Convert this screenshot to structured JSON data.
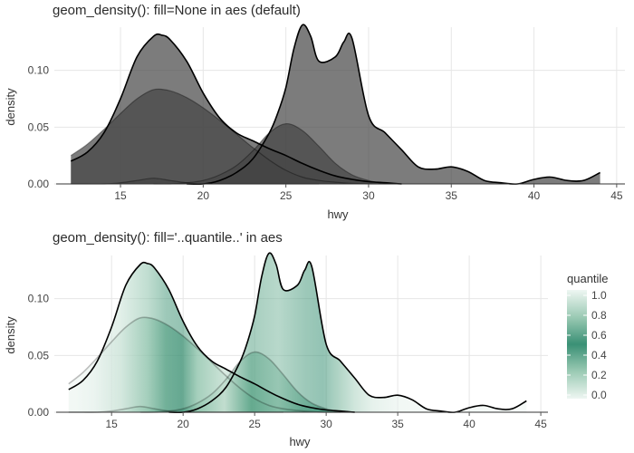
{
  "chart_data": [
    {
      "type": "area",
      "subtype": "density",
      "title": "geom_density(): fill=None in aes (default)",
      "xlabel": "hwy",
      "ylabel": "density",
      "xlim": [
        11,
        45.5
      ],
      "ylim": [
        0,
        0.138
      ],
      "xticks": [
        15,
        20,
        25,
        30,
        35,
        40,
        45
      ],
      "yticks": [
        0.0,
        0.05,
        0.1
      ],
      "ytick_labels": [
        "0.00",
        "0.05",
        "0.10"
      ],
      "grid": true,
      "fill_color": "#454545",
      "line_color": "#000000",
      "series": [
        {
          "x": [
            12,
            13,
            14,
            15,
            16,
            17,
            17.5,
            18,
            19,
            20,
            21,
            22,
            23,
            24,
            25,
            26,
            27,
            28,
            29,
            30,
            31,
            32
          ],
          "y": [
            0.02,
            0.028,
            0.045,
            0.075,
            0.112,
            0.13,
            0.131,
            0.127,
            0.108,
            0.08,
            0.058,
            0.045,
            0.038,
            0.031,
            0.025,
            0.018,
            0.012,
            0.007,
            0.004,
            0.002,
            0.001,
            0.0
          ]
        },
        {
          "x": [
            12,
            13,
            14,
            15,
            16,
            17,
            18,
            19,
            20,
            21,
            22,
            23,
            24,
            25,
            26,
            27
          ],
          "y": [
            0.0,
            0.0,
            0.0,
            0.001,
            0.003,
            0.005,
            0.003,
            0.001,
            0.0,
            0.0,
            0.0,
            0.0,
            0.0,
            0.0,
            0.0,
            0.0
          ]
        },
        {
          "x": [
            12,
            13,
            14,
            15,
            16,
            17,
            18,
            19,
            20,
            21,
            22,
            23,
            24,
            25,
            26,
            27,
            28,
            29,
            30,
            31,
            32
          ],
          "y": [
            0.025,
            0.035,
            0.048,
            0.062,
            0.075,
            0.083,
            0.082,
            0.076,
            0.067,
            0.056,
            0.044,
            0.032,
            0.021,
            0.012,
            0.006,
            0.003,
            0.0015,
            0.0005,
            0.0,
            0.0,
            0.0
          ]
        },
        {
          "x": [
            17,
            18,
            19,
            20,
            21,
            22,
            23,
            24,
            25,
            26,
            27,
            28,
            29,
            30,
            31
          ],
          "y": [
            0.0,
            0.0,
            0.001,
            0.003,
            0.008,
            0.016,
            0.029,
            0.045,
            0.053,
            0.047,
            0.033,
            0.018,
            0.008,
            0.003,
            0.0
          ]
        },
        {
          "x": [
            19,
            20,
            21,
            22,
            23,
            24,
            24.5,
            25,
            25.5,
            26,
            26.5,
            27,
            28,
            28.5,
            29,
            30,
            31,
            32,
            33,
            34,
            35,
            36,
            37,
            38,
            39,
            40,
            41,
            42,
            43,
            44
          ],
          "y": [
            0.0,
            0.0,
            0.003,
            0.01,
            0.022,
            0.045,
            0.062,
            0.085,
            0.12,
            0.14,
            0.13,
            0.108,
            0.112,
            0.125,
            0.128,
            0.06,
            0.045,
            0.03,
            0.015,
            0.013,
            0.015,
            0.011,
            0.003,
            0.001,
            0.0,
            0.004,
            0.006,
            0.003,
            0.003,
            0.01
          ]
        }
      ]
    },
    {
      "type": "area",
      "subtype": "density",
      "title": "geom_density(): fill='..quantile..' in aes",
      "xlabel": "hwy",
      "ylabel": "density",
      "xlim": [
        11,
        45.5
      ],
      "ylim": [
        0,
        0.138
      ],
      "xticks": [
        15,
        20,
        25,
        30,
        35,
        40,
        45
      ],
      "yticks": [
        0.0,
        0.05,
        0.1
      ],
      "ytick_labels": [
        "0.00",
        "0.05",
        "0.10"
      ],
      "grid": true,
      "legend": {
        "title": "quantile",
        "placement": "right",
        "ticks": [
          "1.0",
          "0.8",
          "0.6",
          "0.4",
          "0.2",
          "0.0"
        ],
        "colors": [
          "#ebf4f0",
          "#3a9075",
          "#ebf4f0"
        ]
      },
      "line_color": "#000000",
      "series": [
        {
          "x": [
            12,
            13,
            14,
            15,
            16,
            17,
            17.5,
            18,
            19,
            20,
            21,
            22,
            23,
            24,
            25,
            26,
            27,
            28,
            29,
            30,
            31,
            32
          ],
          "y": [
            0.02,
            0.028,
            0.045,
            0.075,
            0.112,
            0.13,
            0.131,
            0.127,
            0.108,
            0.08,
            0.058,
            0.045,
            0.038,
            0.031,
            0.025,
            0.018,
            0.012,
            0.007,
            0.004,
            0.002,
            0.001,
            0.0
          ]
        },
        {
          "x": [
            12,
            13,
            14,
            15,
            16,
            17,
            18,
            19,
            20,
            21,
            22,
            23,
            24,
            25,
            26,
            27
          ],
          "y": [
            0.0,
            0.0,
            0.0,
            0.001,
            0.003,
            0.005,
            0.003,
            0.001,
            0.0,
            0.0,
            0.0,
            0.0,
            0.0,
            0.0,
            0.0,
            0.0
          ]
        },
        {
          "x": [
            12,
            13,
            14,
            15,
            16,
            17,
            18,
            19,
            20,
            21,
            22,
            23,
            24,
            25,
            26,
            27,
            28,
            29,
            30,
            31,
            32
          ],
          "y": [
            0.025,
            0.035,
            0.048,
            0.062,
            0.075,
            0.083,
            0.082,
            0.076,
            0.067,
            0.056,
            0.044,
            0.032,
            0.021,
            0.012,
            0.006,
            0.003,
            0.0015,
            0.0005,
            0.0,
            0.0,
            0.0
          ]
        },
        {
          "x": [
            17,
            18,
            19,
            20,
            21,
            22,
            23,
            24,
            25,
            26,
            27,
            28,
            29,
            30,
            31
          ],
          "y": [
            0.0,
            0.0,
            0.001,
            0.003,
            0.008,
            0.016,
            0.029,
            0.045,
            0.053,
            0.047,
            0.033,
            0.018,
            0.008,
            0.003,
            0.0
          ]
        },
        {
          "x": [
            19,
            20,
            21,
            22,
            23,
            24,
            24.5,
            25,
            25.5,
            26,
            26.5,
            27,
            28,
            28.5,
            29,
            30,
            31,
            32,
            33,
            34,
            35,
            36,
            37,
            38,
            39,
            40,
            41,
            42,
            43,
            44
          ],
          "y": [
            0.0,
            0.0,
            0.003,
            0.01,
            0.022,
            0.045,
            0.062,
            0.085,
            0.12,
            0.14,
            0.13,
            0.108,
            0.112,
            0.125,
            0.128,
            0.06,
            0.045,
            0.03,
            0.015,
            0.013,
            0.015,
            0.011,
            0.003,
            0.001,
            0.0,
            0.004,
            0.006,
            0.003,
            0.003,
            0.01
          ]
        }
      ]
    }
  ]
}
